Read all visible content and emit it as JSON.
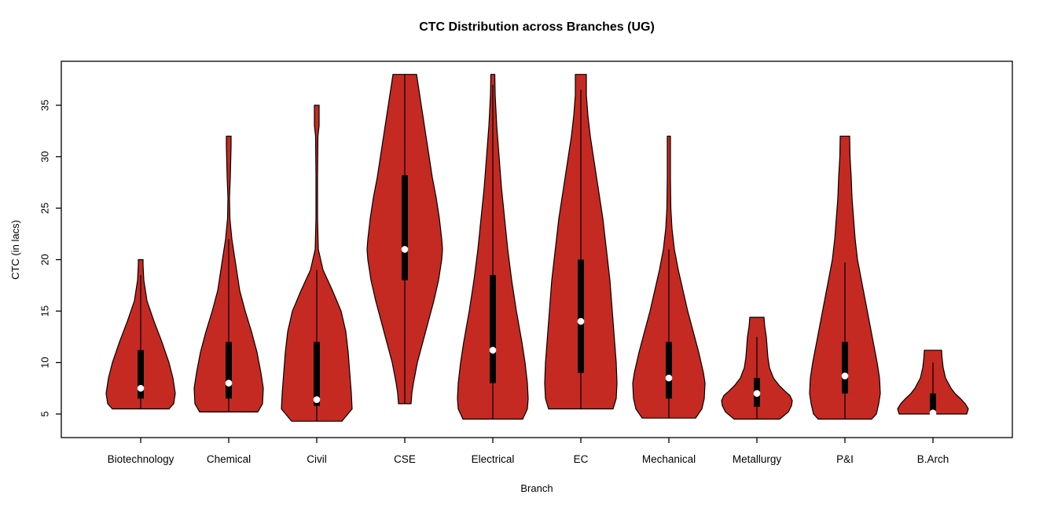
{
  "chart_data": {
    "type": "violin",
    "title": "CTC Distribution across Branches (UG)",
    "xlabel": "Branch",
    "ylabel": "CTC (in lacs)",
    "y_ticks": [
      5,
      10,
      15,
      20,
      25,
      30,
      35
    ],
    "y_range": [
      2.7,
      39.3
    ],
    "grid": false,
    "legend": "none",
    "categories": [
      "Biotechnology",
      "Chemical",
      "Civil",
      "CSE",
      "Electrical",
      "EC",
      "Mechanical",
      "Metallurgy",
      "P&I",
      "B.Arch"
    ],
    "colors": {
      "violin_fill": "#C42A21",
      "violin_outline": "#000000",
      "box": "#000000",
      "whisker": "#000000",
      "median_dot": "#FFFFFF",
      "axis": "#000000",
      "text": "#000000",
      "background": "#FFFFFF"
    },
    "profile_units": "each profile point is [CTC value in lacs, half-width in px]",
    "violins": [
      {
        "branch": "Biotechnology",
        "min": 5.5,
        "max": 20,
        "q1": 6.5,
        "median": 7.5,
        "q3": 11.2,
        "whisker_low": 5.5,
        "whisker_high": 18.5,
        "profile": [
          [
            20,
            3
          ],
          [
            19.5,
            3
          ],
          [
            18,
            4
          ],
          [
            16,
            8
          ],
          [
            14,
            17
          ],
          [
            12,
            27
          ],
          [
            10,
            36
          ],
          [
            8.5,
            41
          ],
          [
            7,
            44
          ],
          [
            6,
            42
          ],
          [
            5.5,
            36
          ]
        ]
      },
      {
        "branch": "Chemical",
        "min": 5.2,
        "max": 32,
        "q1": 6.5,
        "median": 8,
        "q3": 12,
        "whisker_low": 5.2,
        "whisker_high": 22,
        "profile": [
          [
            32,
            3
          ],
          [
            31,
            3
          ],
          [
            28,
            2
          ],
          [
            26,
            1
          ],
          [
            24,
            1.5
          ],
          [
            22,
            4
          ],
          [
            20,
            8
          ],
          [
            17,
            14
          ],
          [
            15,
            21
          ],
          [
            13,
            29
          ],
          [
            11,
            36
          ],
          [
            9,
            41
          ],
          [
            7.5,
            44
          ],
          [
            6,
            43
          ],
          [
            5.2,
            37
          ]
        ]
      },
      {
        "branch": "Civil",
        "min": 4.3,
        "max": 35,
        "q1": 5.8,
        "median": 6.4,
        "q3": 12,
        "whisker_low": 4.3,
        "whisker_high": 19,
        "profile": [
          [
            35,
            3
          ],
          [
            33,
            3
          ],
          [
            32,
            1.5
          ],
          [
            28,
            1
          ],
          [
            24,
            1
          ],
          [
            21,
            2
          ],
          [
            19,
            8
          ],
          [
            17,
            20
          ],
          [
            15,
            31
          ],
          [
            13,
            37
          ],
          [
            11,
            40
          ],
          [
            9,
            42
          ],
          [
            7,
            44
          ],
          [
            5.5,
            45
          ],
          [
            4.3,
            32
          ]
        ]
      },
      {
        "branch": "CSE",
        "min": 6,
        "max": 38,
        "q1": 18,
        "median": 21,
        "q3": 28.2,
        "whisker_low": 6,
        "whisker_high": 38,
        "profile": [
          [
            38,
            15
          ],
          [
            36,
            19
          ],
          [
            34,
            23
          ],
          [
            32,
            27
          ],
          [
            30,
            31
          ],
          [
            28,
            35
          ],
          [
            26,
            40
          ],
          [
            24,
            44
          ],
          [
            22,
            47
          ],
          [
            21,
            48
          ],
          [
            20,
            47
          ],
          [
            18,
            43
          ],
          [
            16,
            37
          ],
          [
            14,
            30
          ],
          [
            12,
            23
          ],
          [
            10,
            16
          ],
          [
            8,
            11
          ],
          [
            7,
            9
          ],
          [
            6,
            8
          ]
        ]
      },
      {
        "branch": "Electrical",
        "min": 4.5,
        "max": 38,
        "q1": 8,
        "median": 11.2,
        "q3": 18.5,
        "whisker_low": 4.5,
        "whisker_high": 37,
        "profile": [
          [
            38,
            2.5
          ],
          [
            36,
            3
          ],
          [
            33,
            5
          ],
          [
            30,
            8
          ],
          [
            27,
            11
          ],
          [
            24,
            15
          ],
          [
            21,
            19
          ],
          [
            18,
            24
          ],
          [
            15,
            30
          ],
          [
            12,
            37
          ],
          [
            10,
            41
          ],
          [
            8,
            44
          ],
          [
            6.5,
            45
          ],
          [
            5.5,
            44
          ],
          [
            4.5,
            38
          ]
        ]
      },
      {
        "branch": "EC",
        "min": 5.5,
        "max": 38,
        "q1": 9,
        "median": 14,
        "q3": 20,
        "whisker_low": 5.5,
        "whisker_high": 36.5,
        "profile": [
          [
            38,
            7
          ],
          [
            36,
            7
          ],
          [
            34,
            9
          ],
          [
            32,
            12
          ],
          [
            30,
            16
          ],
          [
            28,
            20
          ],
          [
            26,
            24
          ],
          [
            24,
            28
          ],
          [
            22,
            31
          ],
          [
            20,
            34
          ],
          [
            18,
            37
          ],
          [
            15,
            40
          ],
          [
            12,
            43
          ],
          [
            10,
            45
          ],
          [
            8,
            46
          ],
          [
            6.5,
            45
          ],
          [
            5.5,
            41
          ]
        ]
      },
      {
        "branch": "Mechanical",
        "min": 4.6,
        "max": 32,
        "q1": 6.5,
        "median": 8.5,
        "q3": 12,
        "whisker_low": 4.6,
        "whisker_high": 21,
        "profile": [
          [
            32,
            2
          ],
          [
            28,
            2
          ],
          [
            25,
            2.5
          ],
          [
            23,
            4
          ],
          [
            21,
            7
          ],
          [
            19,
            12
          ],
          [
            17,
            18
          ],
          [
            15,
            24
          ],
          [
            13,
            31
          ],
          [
            11,
            38
          ],
          [
            9,
            44
          ],
          [
            8,
            46
          ],
          [
            6.5,
            45
          ],
          [
            5.5,
            42
          ],
          [
            4.6,
            34
          ]
        ]
      },
      {
        "branch": "Metallurgy",
        "min": 4.5,
        "max": 14.4,
        "q1": 5.7,
        "median": 7,
        "q3": 8.5,
        "whisker_low": 4.5,
        "whisker_high": 12.5,
        "profile": [
          [
            14.4,
            9
          ],
          [
            13.5,
            10
          ],
          [
            12.5,
            12
          ],
          [
            11.5,
            13
          ],
          [
            10.5,
            14
          ],
          [
            9.5,
            16
          ],
          [
            8.5,
            21
          ],
          [
            7.8,
            28
          ],
          [
            7.2,
            36
          ],
          [
            6.8,
            42
          ],
          [
            6.3,
            45
          ],
          [
            5.8,
            44
          ],
          [
            5.2,
            40
          ],
          [
            4.5,
            29
          ]
        ]
      },
      {
        "branch": "P&I",
        "min": 4.5,
        "max": 32,
        "q1": 7,
        "median": 8.7,
        "q3": 12,
        "whisker_low": 4.5,
        "whisker_high": 19.7,
        "profile": [
          [
            32,
            6
          ],
          [
            30,
            6.5
          ],
          [
            28,
            8
          ],
          [
            26,
            9
          ],
          [
            24,
            11
          ],
          [
            22,
            13
          ],
          [
            20,
            16
          ],
          [
            18,
            21
          ],
          [
            16,
            26
          ],
          [
            14,
            31
          ],
          [
            12,
            36
          ],
          [
            10,
            41
          ],
          [
            8.5,
            44
          ],
          [
            7,
            45
          ],
          [
            6,
            43
          ],
          [
            5,
            40
          ],
          [
            4.5,
            34
          ]
        ]
      },
      {
        "branch": "B.Arch",
        "min": 5,
        "max": 11.2,
        "q1": 5.1,
        "median": 5.1,
        "q3": 7,
        "whisker_low": 5,
        "whisker_high": 10,
        "profile": [
          [
            11.2,
            11
          ],
          [
            10.5,
            11.5
          ],
          [
            9.5,
            13
          ],
          [
            8.5,
            16
          ],
          [
            7.5,
            23
          ],
          [
            7,
            28
          ],
          [
            6.5,
            35
          ],
          [
            6,
            41
          ],
          [
            5.5,
            45
          ],
          [
            5,
            43
          ]
        ]
      }
    ]
  }
}
